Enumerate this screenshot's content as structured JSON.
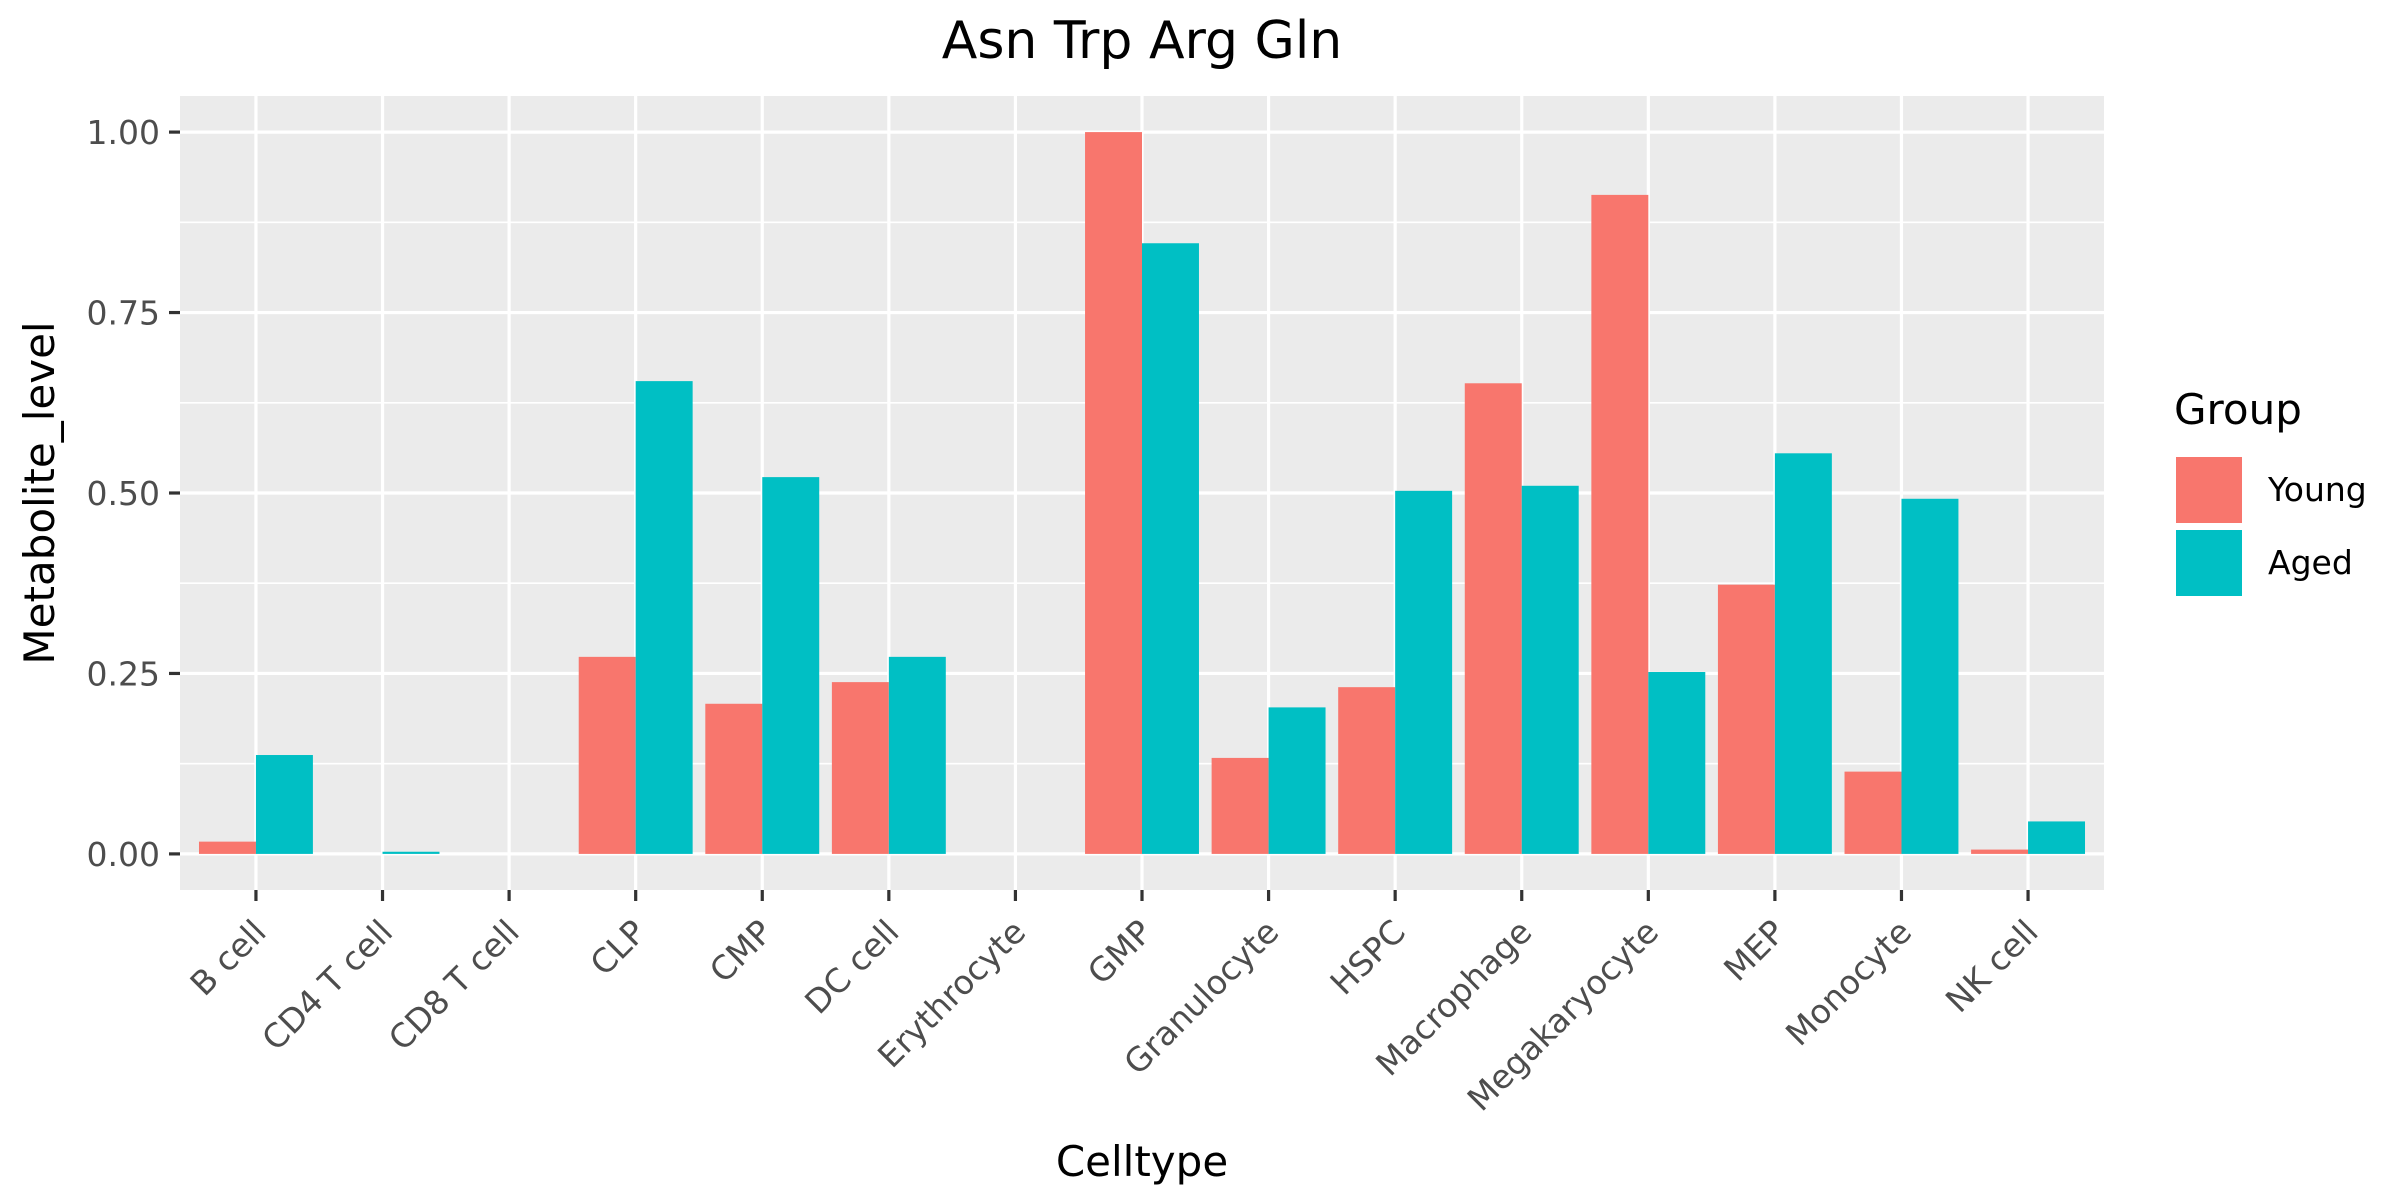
{
  "chart_data": {
    "type": "bar",
    "title": "Asn Trp Arg Gln",
    "xlabel": "Celltype",
    "ylabel": "Metabolite_level",
    "categories": [
      "B cell",
      "CD4 T cell",
      "CD8 T cell",
      "CLP",
      "CMP",
      "DC cell",
      "Erythrocyte",
      "GMP",
      "Granulocyte",
      "HSPC",
      "Macrophage",
      "Megakaryocyte",
      "MEP",
      "Monocyte",
      "NK cell"
    ],
    "series": [
      {
        "name": "Young",
        "color": "#F8766D",
        "values": [
          0.017,
          0,
          0,
          0.273,
          0.208,
          0.238,
          0,
          1.0,
          0.133,
          0.231,
          0.652,
          0.913,
          0.373,
          0.114,
          0.006
        ]
      },
      {
        "name": "Aged",
        "color": "#00BFC4",
        "values": [
          0.137,
          0.003,
          0,
          0.655,
          0.522,
          0.273,
          0,
          0.846,
          0.203,
          0.503,
          0.51,
          0.252,
          0.555,
          0.492,
          0.045
        ]
      }
    ],
    "ylim": [
      -0.05,
      1.05
    ],
    "yticks": [
      0,
      0.25,
      0.5,
      0.75,
      1.0
    ],
    "ytick_labels": [
      "0.00",
      "0.25",
      "0.50",
      "0.75",
      "1.00"
    ],
    "grid": true,
    "legend": {
      "title": "Group",
      "position": "right"
    },
    "colors": {
      "panel_background": "#EBEBEB",
      "grid_line": "#FFFFFF",
      "tick_mark": "#333333"
    }
  }
}
